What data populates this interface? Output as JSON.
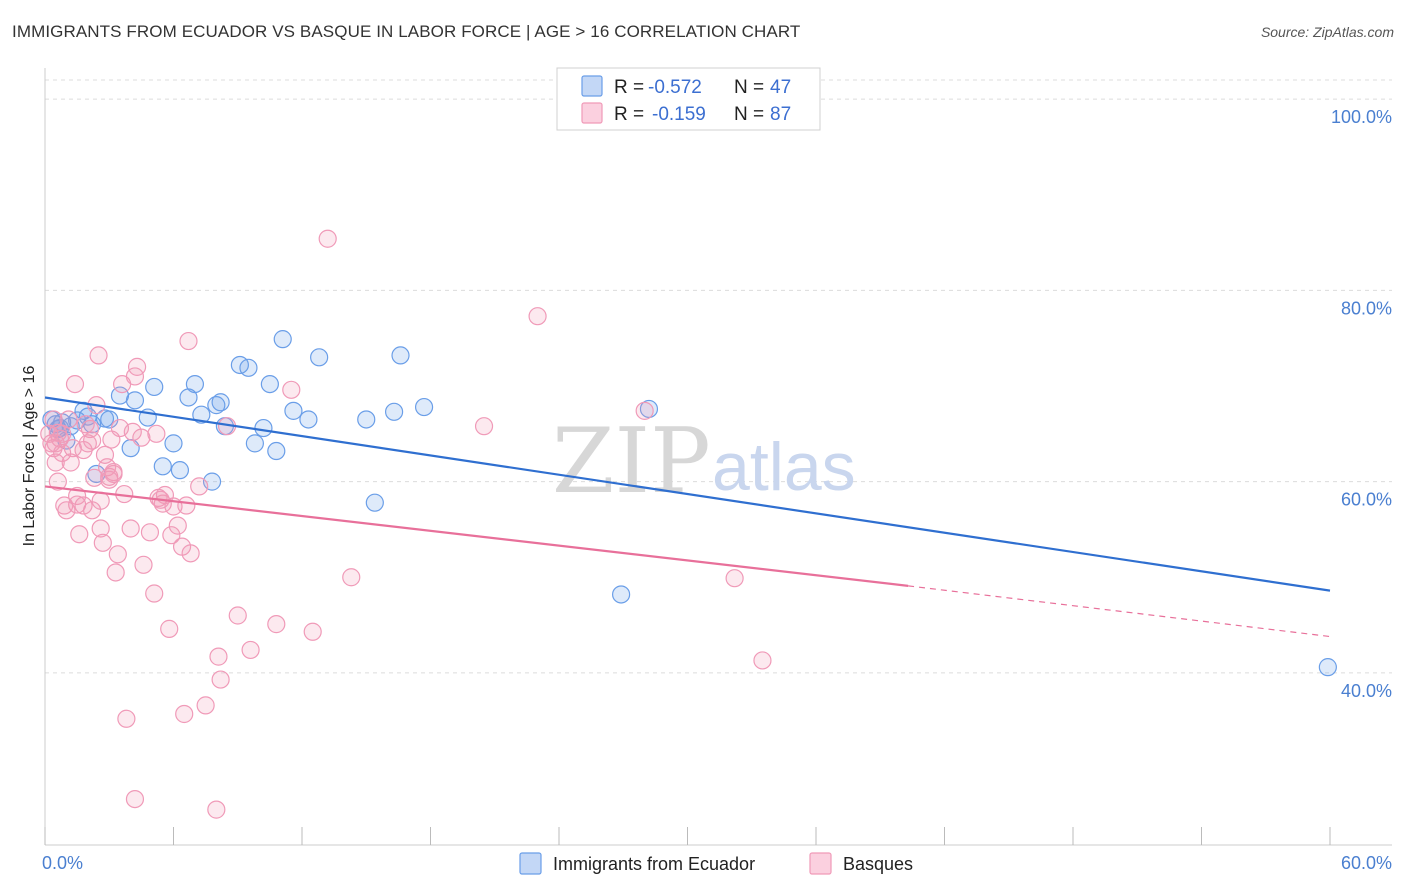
{
  "header": {
    "title": "IMMIGRANTS FROM ECUADOR VS BASQUE IN LABOR FORCE | AGE > 16 CORRELATION CHART",
    "source": "Source: ZipAtlas.com"
  },
  "watermark": {
    "zip": "ZIP",
    "atlas": "atlas"
  },
  "legend": {
    "series": [
      {
        "r_label": "R =",
        "r_value": "-0.572",
        "n_label": "N =",
        "n_value": "47"
      },
      {
        "r_label": "R =",
        "r_value": "-0.159",
        "n_label": "N =",
        "n_value": "87"
      }
    ]
  },
  "chart_data": {
    "type": "scatter",
    "ylabel": "In Labor Force | Age > 16",
    "xlim": [
      0,
      60
    ],
    "ylim": [
      22,
      102
    ],
    "x_tick_labels": [
      "0.0%",
      "60.0%"
    ],
    "y_ticks": [
      40,
      60,
      80,
      100
    ],
    "y_tick_labels": [
      "40.0%",
      "60.0%",
      "80.0%",
      "100.0%"
    ],
    "grid": true,
    "colors": {
      "ecuador": "#6a9ee8",
      "basque": "#f09ab8",
      "ecuador_line": "#2f6fd0",
      "basque_line": "#e8709a"
    },
    "series": [
      {
        "name": "Immigrants from Ecuador",
        "trend": {
          "x": [
            0,
            60
          ],
          "y": [
            68.8,
            48.6
          ]
        },
        "points": [
          [
            0.3,
            66.5
          ],
          [
            0.5,
            66
          ],
          [
            0.6,
            65.5
          ],
          [
            0.8,
            66.2
          ],
          [
            1.2,
            65.8
          ],
          [
            1.5,
            66.4
          ],
          [
            1.8,
            67.4
          ],
          [
            2.0,
            66.8
          ],
          [
            2.2,
            66
          ],
          [
            2.4,
            60.8
          ],
          [
            2.8,
            66.6
          ],
          [
            3.0,
            66.5
          ],
          [
            3.5,
            69
          ],
          [
            4.0,
            63.5
          ],
          [
            4.2,
            68.5
          ],
          [
            4.8,
            66.7
          ],
          [
            5.1,
            69.9
          ],
          [
            5.5,
            61.6
          ],
          [
            6.0,
            64
          ],
          [
            6.3,
            61.2
          ],
          [
            6.7,
            68.8
          ],
          [
            7.0,
            70.2
          ],
          [
            7.3,
            67
          ],
          [
            7.8,
            60
          ],
          [
            8.0,
            68
          ],
          [
            8.2,
            68.3
          ],
          [
            8.4,
            65.8
          ],
          [
            9.1,
            72.2
          ],
          [
            9.5,
            71.9
          ],
          [
            9.8,
            64
          ],
          [
            10.2,
            65.6
          ],
          [
            10.5,
            70.2
          ],
          [
            10.8,
            63.2
          ],
          [
            11.1,
            74.9
          ],
          [
            11.6,
            67.4
          ],
          [
            12.3,
            66.5
          ],
          [
            12.8,
            73
          ],
          [
            15.0,
            66.5
          ],
          [
            15.4,
            57.8
          ],
          [
            16.3,
            67.3
          ],
          [
            16.6,
            73.2
          ],
          [
            17.7,
            67.8
          ],
          [
            26.9,
            48.2
          ],
          [
            28.2,
            67.6
          ],
          [
            59.9,
            40.6
          ],
          [
            0.7,
            65.6
          ],
          [
            1.0,
            64.3
          ]
        ]
      },
      {
        "name": "Basques",
        "trend": {
          "x": [
            0,
            40.3
          ],
          "y": [
            59.5,
            49.1
          ]
        },
        "trend_dashed": {
          "x": [
            40.3,
            60
          ],
          "y": [
            49.1,
            43.8
          ]
        },
        "points": [
          [
            0.2,
            65
          ],
          [
            0.3,
            64
          ],
          [
            0.4,
            63.5
          ],
          [
            0.5,
            62
          ],
          [
            0.6,
            60
          ],
          [
            0.7,
            64.5
          ],
          [
            0.8,
            65
          ],
          [
            0.9,
            57.5
          ],
          [
            1.0,
            57
          ],
          [
            1.2,
            62
          ],
          [
            1.4,
            70.2
          ],
          [
            1.5,
            58.5
          ],
          [
            1.6,
            54.5
          ],
          [
            1.8,
            63.3
          ],
          [
            2.0,
            64
          ],
          [
            2.1,
            65.5
          ],
          [
            2.2,
            57
          ],
          [
            2.4,
            68
          ],
          [
            2.5,
            73.2
          ],
          [
            2.6,
            58
          ],
          [
            2.8,
            62.8
          ],
          [
            2.9,
            61.5
          ],
          [
            3.0,
            60.5
          ],
          [
            3.1,
            64.4
          ],
          [
            3.2,
            61
          ],
          [
            3.3,
            50.5
          ],
          [
            3.4,
            52.4
          ],
          [
            3.5,
            65.6
          ],
          [
            3.6,
            70.2
          ],
          [
            3.7,
            58.7
          ],
          [
            4.0,
            55.1
          ],
          [
            4.2,
            71
          ],
          [
            4.3,
            72
          ],
          [
            4.5,
            64.6
          ],
          [
            4.6,
            51.3
          ],
          [
            4.9,
            54.7
          ],
          [
            5.1,
            48.3
          ],
          [
            5.2,
            65
          ],
          [
            5.3,
            58.3
          ],
          [
            5.5,
            57.7
          ],
          [
            5.6,
            58.6
          ],
          [
            5.8,
            44.6
          ],
          [
            5.9,
            54.4
          ],
          [
            6.0,
            57.4
          ],
          [
            6.2,
            55.4
          ],
          [
            6.4,
            53.2
          ],
          [
            6.6,
            57.5
          ],
          [
            6.7,
            74.7
          ],
          [
            6.8,
            52.5
          ],
          [
            7.2,
            59.5
          ],
          [
            7.5,
            36.6
          ],
          [
            8.1,
            41.7
          ],
          [
            8.2,
            39.3
          ],
          [
            8.5,
            65.8
          ],
          [
            9.0,
            46
          ],
          [
            9.6,
            42.4
          ],
          [
            10.8,
            45.1
          ],
          [
            11.5,
            69.6
          ],
          [
            12.5,
            44.3
          ],
          [
            13.2,
            85.4
          ],
          [
            14.3,
            50
          ],
          [
            20.5,
            65.8
          ],
          [
            23.0,
            77.3
          ],
          [
            28.0,
            67.4
          ],
          [
            32.2,
            49.9
          ],
          [
            33.5,
            41.3
          ],
          [
            3.8,
            35.2
          ],
          [
            4.2,
            26.8
          ],
          [
            8.0,
            25.7
          ],
          [
            6.5,
            35.7
          ],
          [
            0.5,
            64
          ],
          [
            1.3,
            63.5
          ],
          [
            1.8,
            57.5
          ],
          [
            2.3,
            60.4
          ],
          [
            2.7,
            53.6
          ],
          [
            3.0,
            60.2
          ],
          [
            0.8,
            63
          ],
          [
            1.1,
            66.5
          ],
          [
            1.9,
            66
          ],
          [
            2.6,
            55.1
          ],
          [
            3.2,
            60.8
          ],
          [
            0.4,
            66.5
          ],
          [
            1.5,
            57.6
          ],
          [
            5.4,
            58.1
          ],
          [
            0.6,
            65.1
          ],
          [
            2.2,
            64.3
          ],
          [
            4.1,
            65.2
          ]
        ]
      }
    ]
  },
  "bottom_legend": {
    "items": [
      {
        "label": "Immigrants from Ecuador"
      },
      {
        "label": "Basques"
      }
    ]
  }
}
